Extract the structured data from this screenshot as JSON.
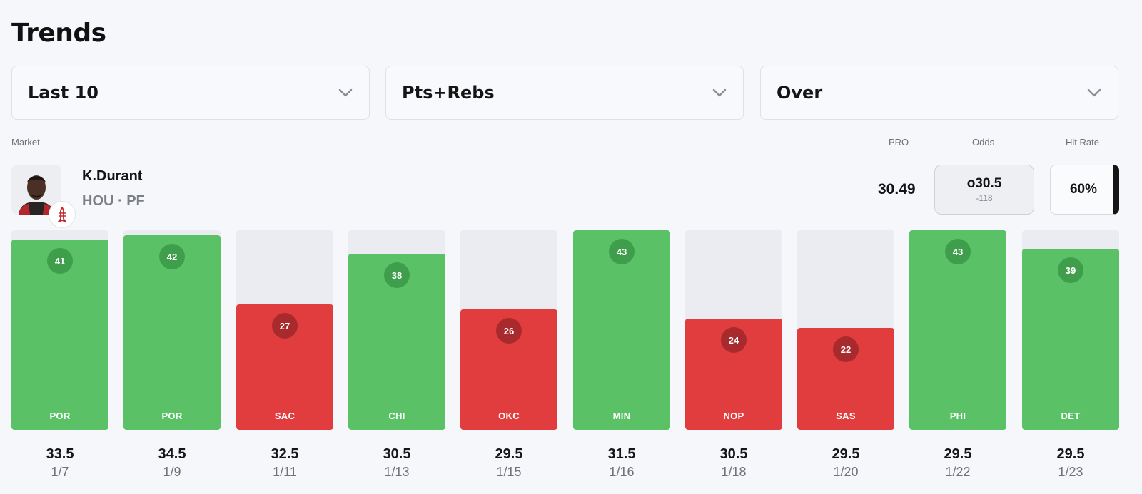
{
  "header": {
    "title": "Trends"
  },
  "filters": [
    {
      "value": "Last 10"
    },
    {
      "value": "Pts+Rebs"
    },
    {
      "value": "Over"
    }
  ],
  "labels": {
    "market": "Market",
    "pro": "PRO",
    "odds": "Odds",
    "hit_rate": "Hit Rate"
  },
  "player": {
    "name": "K.Durant",
    "meta": "HOU · PF",
    "pro": "30.49",
    "odds_line": "o30.5",
    "odds_price": "-118",
    "hit_rate": "60%"
  },
  "colors": {
    "win": "#5bc166",
    "loss": "#e13d3e",
    "empty": "#ebecf1"
  },
  "chart_data": {
    "type": "bar",
    "ylim": [
      0,
      43
    ],
    "games": [
      {
        "value": 41,
        "opponent": "POR",
        "line": "33.5",
        "date": "1/7",
        "result": "win"
      },
      {
        "value": 42,
        "opponent": "POR",
        "line": "34.5",
        "date": "1/9",
        "result": "win"
      },
      {
        "value": 27,
        "opponent": "SAC",
        "line": "32.5",
        "date": "1/11",
        "result": "loss"
      },
      {
        "value": 38,
        "opponent": "CHI",
        "line": "30.5",
        "date": "1/13",
        "result": "win"
      },
      {
        "value": 26,
        "opponent": "OKC",
        "line": "29.5",
        "date": "1/15",
        "result": "loss"
      },
      {
        "value": 43,
        "opponent": "MIN",
        "line": "31.5",
        "date": "1/16",
        "result": "win"
      },
      {
        "value": 24,
        "opponent": "NOP",
        "line": "30.5",
        "date": "1/18",
        "result": "loss"
      },
      {
        "value": 22,
        "opponent": "SAS",
        "line": "29.5",
        "date": "1/20",
        "result": "loss"
      },
      {
        "value": 43,
        "opponent": "PHI",
        "line": "29.5",
        "date": "1/22",
        "result": "win"
      },
      {
        "value": 39,
        "opponent": "DET",
        "line": "29.5",
        "date": "1/23",
        "result": "win"
      }
    ]
  }
}
